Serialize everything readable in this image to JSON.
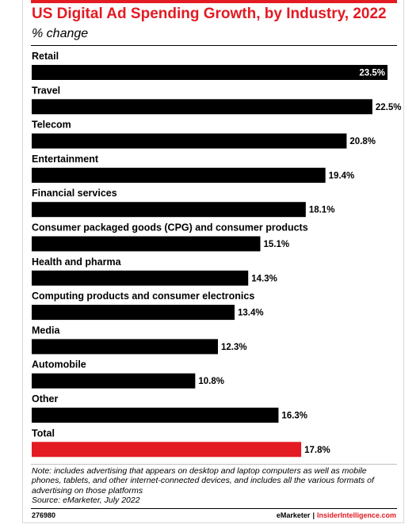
{
  "header": {
    "title": "US Digital Ad Spending Growth, by Industry, 2022",
    "subtitle": "% change"
  },
  "chart_data": {
    "type": "bar",
    "orientation": "horizontal",
    "title": "US Digital Ad Spending Growth, by Industry, 2022",
    "subtitle": "% change",
    "xlabel": "",
    "ylabel": "",
    "xlim": [
      0,
      23.5
    ],
    "grid": false,
    "legend": "none",
    "value_suffix": "%",
    "categories": [
      "Retail",
      "Travel",
      "Telecom",
      "Entertainment",
      "Financial services",
      "Consumer packaged goods (CPG) and consumer products",
      "Health and pharma",
      "Computing products and consumer electronics",
      "Media",
      "Automobile",
      "Other",
      "Total"
    ],
    "values": [
      23.5,
      22.5,
      20.8,
      19.4,
      18.1,
      15.1,
      14.3,
      13.4,
      12.3,
      10.8,
      16.3,
      17.8
    ],
    "value_labels": [
      "23.5%",
      "22.5%",
      "20.8%",
      "19.4%",
      "18.1%",
      "15.1%",
      "14.3%",
      "13.4%",
      "12.3%",
      "10.8%",
      "16.3%",
      "17.8%"
    ],
    "bar_colors": [
      "#000000",
      "#000000",
      "#000000",
      "#000000",
      "#000000",
      "#000000",
      "#000000",
      "#000000",
      "#000000",
      "#000000",
      "#000000",
      "#e31b23"
    ]
  },
  "footer": {
    "note": "Note: includes advertising that appears on desktop and laptop computers as well as mobile phones, tablets, and other internet-connected devices, and includes all the various formats of advertising on those platforms",
    "source": "Source: eMarketer, July 2022",
    "chart_id": "276980",
    "brand_left": "eMarketer",
    "brand_sep": "|",
    "brand_right": "InsiderIntelligence.com"
  },
  "colors": {
    "accent": "#e31b23",
    "bar": "#000000",
    "text": "#000000"
  }
}
